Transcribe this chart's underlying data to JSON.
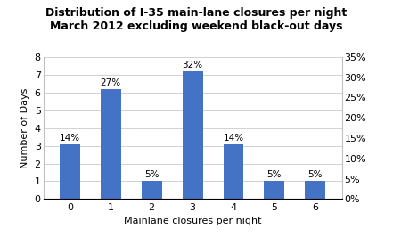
{
  "title_line1": "Distribution of I-35 main-lane closures per night",
  "title_line2": "March 2012 excluding weekend black-out days",
  "categories": [
    0,
    1,
    2,
    3,
    4,
    5,
    6
  ],
  "values": [
    3.1,
    6.2,
    1.0,
    7.2,
    3.1,
    1.0,
    1.0
  ],
  "percentages": [
    "14%",
    "27%",
    "5%",
    "32%",
    "14%",
    "5%",
    "5%"
  ],
  "bar_color": "#4472C4",
  "xlabel": "Mainlane closures per night",
  "ylabel": "Number of Days",
  "ylim_left": [
    0,
    8
  ],
  "ylim_right": [
    0,
    0.35
  ],
  "yticks_left": [
    0,
    1,
    2,
    3,
    4,
    5,
    6,
    7,
    8
  ],
  "yticks_right": [
    0.0,
    0.05,
    0.1,
    0.15,
    0.2,
    0.25,
    0.3,
    0.35
  ],
  "ytick_right_labels": [
    "0%",
    "5%",
    "10%",
    "15%",
    "20%",
    "25%",
    "30%",
    "35%"
  ],
  "title_fontsize": 9,
  "label_fontsize": 8,
  "tick_fontsize": 8,
  "pct_fontsize": 7.5,
  "background_color": "#ffffff",
  "bar_width": 0.5
}
